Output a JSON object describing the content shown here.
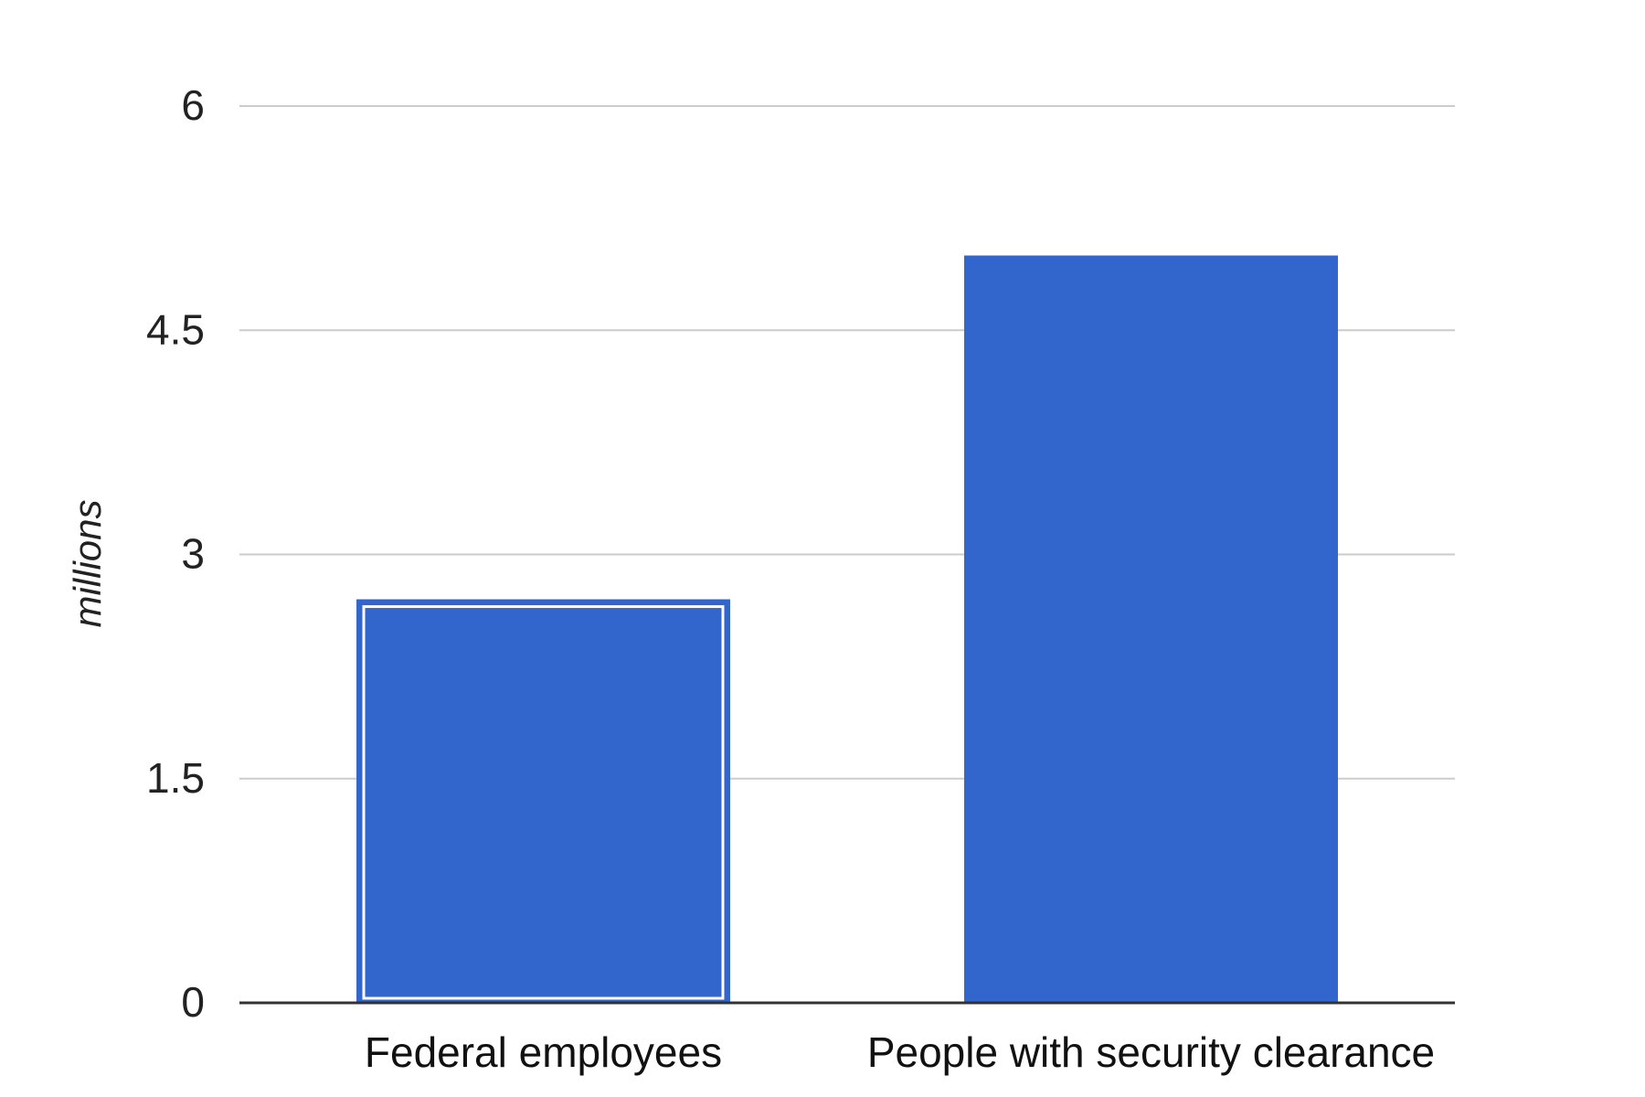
{
  "chart_data": {
    "type": "bar",
    "title": "",
    "xlabel": "",
    "ylabel": "millions",
    "categories": [
      "Federal employees",
      "People with security clearance"
    ],
    "values": [
      2.7,
      5.0
    ],
    "ylim": [
      0,
      6
    ],
    "yticks": [
      "0",
      "1.5",
      "3",
      "4.5",
      "6"
    ],
    "grid": true,
    "legend": "none",
    "highlighted_category": "Federal employees",
    "colors": {
      "bar": "#3366cc",
      "highlight_border": "#ffffff",
      "gridline": "#cccccc",
      "baseline": "#333333"
    }
  }
}
